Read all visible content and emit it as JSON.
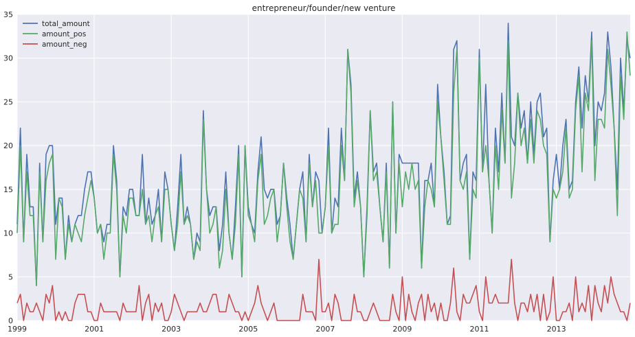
{
  "chart_data": {
    "type": "line",
    "title": "entrepreneur/founder/new venture",
    "xlabel": "",
    "ylabel": "",
    "x_start": "1999-01",
    "x_end": "2014-12",
    "x_ticks": [
      "1999",
      "2001",
      "2003",
      "2005",
      "2007",
      "2009",
      "2011",
      "2013"
    ],
    "x_tick_dates": [
      "1999-01",
      "2001-01",
      "2003-01",
      "2005-01",
      "2007-01",
      "2009-01",
      "2011-01",
      "2013-01"
    ],
    "ylim": [
      0,
      35
    ],
    "y_ticks": [
      0,
      5,
      10,
      15,
      20,
      25,
      30,
      35
    ],
    "grid": true,
    "legend_position": "top-left",
    "colors": {
      "background": "#eaeaf2",
      "grid": "#ffffff",
      "total_amount": "#4c72b0",
      "amount_pos": "#55a868",
      "amount_neg": "#c44e52"
    },
    "series": [
      {
        "name": "total_amount",
        "color": "#4c72b0",
        "values": [
          11,
          22,
          9,
          19,
          13,
          13,
          4,
          18,
          9,
          19,
          20,
          20,
          11,
          14,
          14,
          7,
          12,
          9,
          11,
          12,
          12,
          15,
          17,
          17,
          14,
          10,
          11,
          9,
          11,
          11,
          20,
          16,
          5,
          13,
          12,
          15,
          15,
          12,
          12,
          19,
          11,
          14,
          11,
          12,
          15,
          9,
          17,
          15,
          11,
          8,
          13,
          19,
          11,
          13,
          11,
          7,
          10,
          9,
          24,
          15,
          12,
          13,
          13,
          8,
          11,
          17,
          10,
          7,
          13,
          20,
          5,
          20,
          13,
          11,
          10,
          17,
          21,
          15,
          14,
          15,
          15,
          11,
          12,
          18,
          14,
          11,
          7,
          11,
          15,
          17,
          9,
          19,
          13,
          17,
          16,
          10,
          13,
          22,
          10,
          14,
          13,
          22,
          16,
          31,
          27,
          14,
          17,
          13,
          5,
          13,
          24,
          17,
          18,
          13,
          9,
          18,
          6,
          25,
          10,
          19,
          18,
          18,
          18,
          18,
          18,
          18,
          6,
          16,
          16,
          18,
          13,
          27,
          21,
          17,
          11,
          12,
          31,
          32,
          16,
          18,
          19,
          7,
          17,
          16,
          31,
          17,
          27,
          16,
          10,
          22,
          17,
          26,
          18,
          34,
          21,
          20,
          26,
          22,
          24,
          18,
          25,
          19,
          25,
          26,
          21,
          22,
          9,
          16,
          19,
          15,
          20,
          23,
          15,
          16,
          25,
          29,
          22,
          28,
          25,
          33,
          20,
          25,
          24,
          26,
          33,
          29,
          22,
          15,
          30,
          24,
          32,
          30
        ]
      },
      {
        "name": "amount_pos",
        "color": "#55a868",
        "values": [
          10,
          20,
          9,
          17,
          12,
          12,
          4,
          17,
          9,
          16,
          18,
          19,
          7,
          14,
          13,
          7,
          11,
          9,
          11,
          10,
          9,
          12,
          14,
          16,
          14,
          10,
          11,
          7,
          10,
          10,
          19,
          15,
          5,
          12,
          10,
          14,
          14,
          12,
          12,
          15,
          11,
          12,
          9,
          12,
          13,
          9,
          15,
          15,
          11,
          8,
          11,
          17,
          11,
          12,
          11,
          7,
          9,
          8,
          23,
          15,
          10,
          11,
          13,
          6,
          8,
          15,
          10,
          7,
          11,
          19,
          5,
          20,
          12,
          11,
          9,
          16,
          19,
          11,
          12,
          14,
          15,
          9,
          12,
          18,
          13,
          9,
          7,
          11,
          15,
          14,
          9,
          18,
          13,
          16,
          10,
          10,
          13,
          20,
          10,
          11,
          11,
          20,
          16,
          31,
          26,
          13,
          16,
          13,
          5,
          12,
          24,
          16,
          17,
          13,
          9,
          17,
          6,
          25,
          10,
          18,
          13,
          17,
          15,
          18,
          15,
          16,
          6,
          13,
          16,
          15,
          13,
          25,
          21,
          16,
          11,
          11,
          26,
          31,
          16,
          15,
          17,
          7,
          15,
          14,
          30,
          17,
          20,
          16,
          10,
          20,
          15,
          24,
          18,
          32,
          14,
          18,
          26,
          20,
          22,
          18,
          23,
          18,
          24,
          23,
          20,
          19,
          9,
          15,
          14,
          15,
          17,
          22,
          14,
          15,
          24,
          28,
          17,
          26,
          24,
          32,
          16,
          23,
          23,
          22,
          31,
          27,
          22,
          12,
          28,
          23,
          33,
          28
        ]
      },
      {
        "name": "amount_neg",
        "color": "#c44e52",
        "values": [
          2,
          3,
          0,
          2,
          1,
          1,
          2,
          1,
          0,
          3,
          2,
          4,
          0,
          1,
          0,
          1,
          0,
          0,
          2,
          3,
          3,
          3,
          1,
          1,
          0,
          0,
          2,
          1,
          1,
          1,
          1,
          1,
          0,
          2,
          1,
          1,
          1,
          1,
          4,
          0,
          2,
          3,
          0,
          2,
          1,
          2,
          0,
          0,
          1,
          3,
          2,
          1,
          0,
          1,
          1,
          1,
          1,
          2,
          1,
          1,
          2,
          3,
          3,
          1,
          1,
          1,
          3,
          2,
          1,
          1,
          0,
          1,
          0,
          1,
          2,
          4,
          2,
          1,
          0,
          1,
          2,
          0,
          0,
          0,
          0,
          0,
          0,
          0,
          0,
          3,
          1,
          1,
          1,
          0,
          7,
          1,
          1,
          2,
          0,
          3,
          2,
          0,
          0,
          0,
          0,
          3,
          1,
          1,
          0,
          0,
          1,
          2,
          1,
          0,
          0,
          0,
          0,
          3,
          1,
          0,
          5,
          0,
          3,
          1,
          0,
          2,
          3,
          0,
          3,
          1,
          2,
          0,
          2,
          0,
          0,
          2,
          6,
          1,
          0,
          3,
          2,
          2,
          3,
          4,
          1,
          0,
          5,
          2,
          2,
          3,
          2,
          2,
          2,
          2,
          7,
          2,
          0,
          2,
          2,
          1,
          3,
          1,
          3,
          0,
          3,
          0,
          1,
          5,
          0,
          0,
          1,
          1,
          2,
          0,
          5,
          1,
          2,
          1,
          4,
          0,
          4,
          2,
          1,
          4,
          2,
          5,
          3,
          2,
          1,
          1,
          0,
          2
        ]
      }
    ]
  }
}
